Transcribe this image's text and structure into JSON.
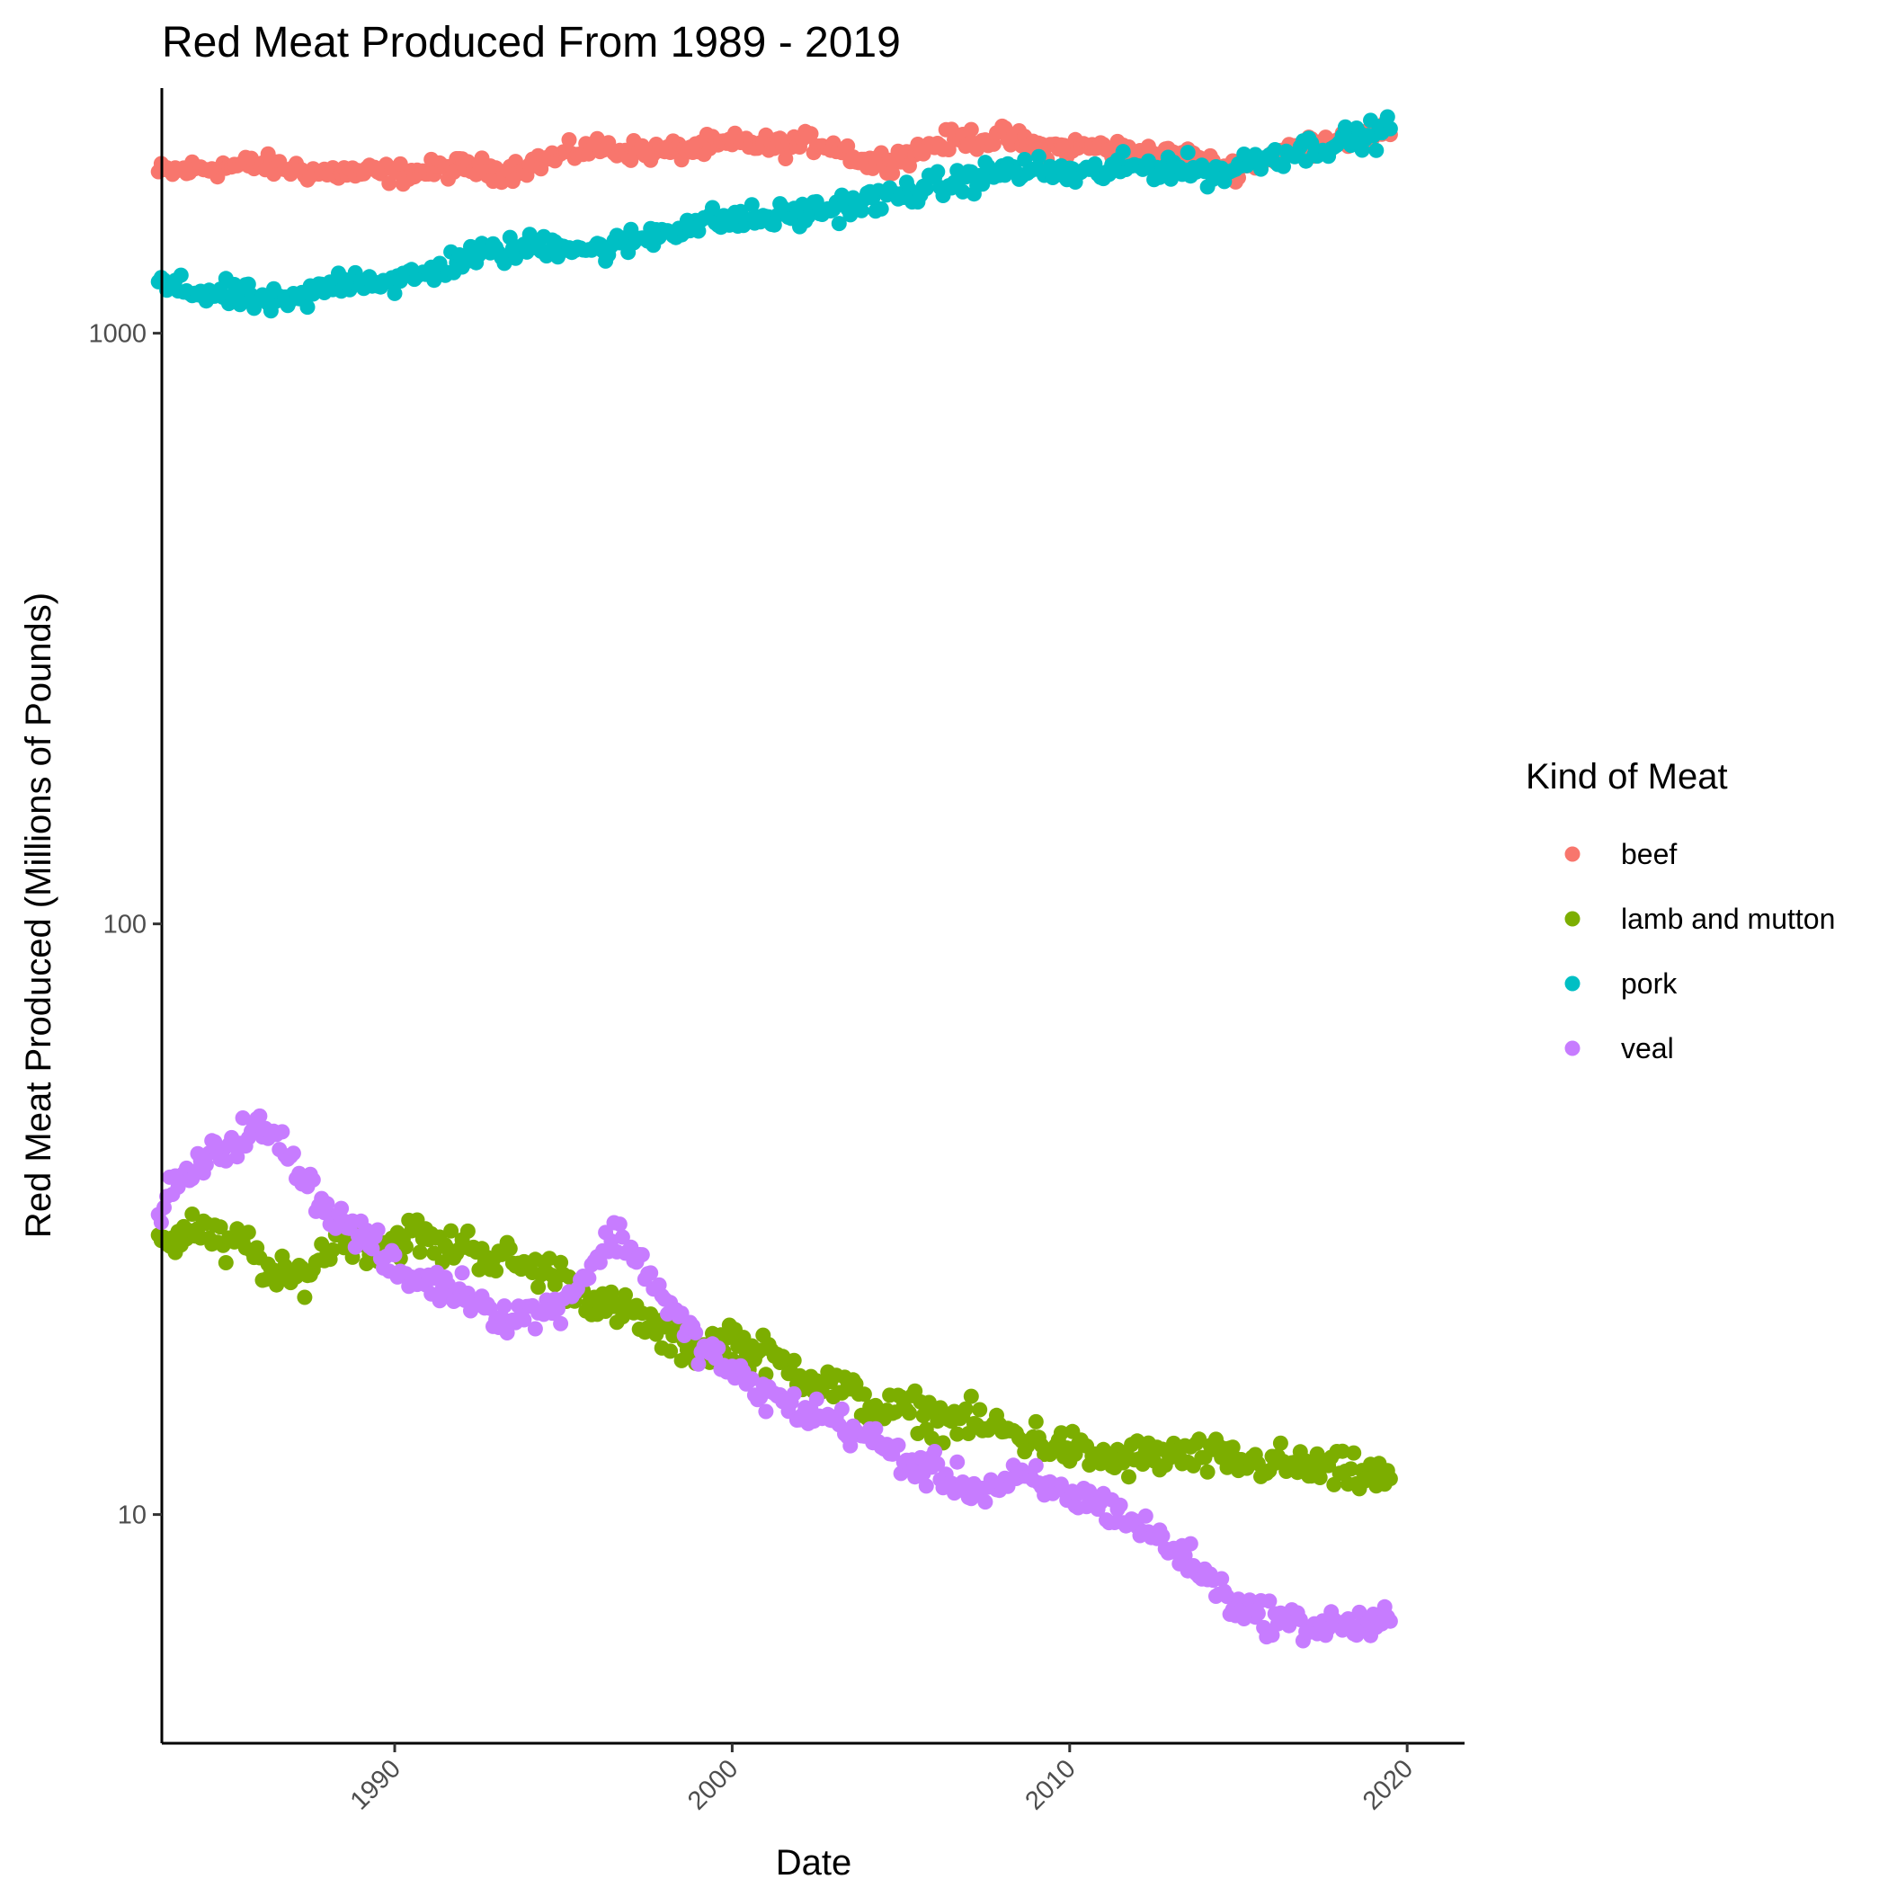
{
  "chart_data": {
    "type": "scatter",
    "title": "Red Meat Produced From 1989 - 2019",
    "xlabel": "Date",
    "ylabel": "Red Meat Produced (Millions of Pounds)",
    "x_scale": "date",
    "y_scale": "log10",
    "xlim": [
      1983.1,
      2021.7
    ],
    "ylim": [
      4.1,
      2600
    ],
    "x_ticks": [
      1990,
      2000,
      2010,
      2020
    ],
    "x_tick_labels": [
      "1990",
      "2000",
      "2010",
      "2020"
    ],
    "y_ticks": [
      10,
      100,
      1000
    ],
    "y_tick_labels": [
      "10",
      "100",
      "1000"
    ],
    "grid": false,
    "legend": {
      "title": "Kind of Meat",
      "position": "right"
    },
    "series": [
      {
        "name": "beef",
        "color": "#F8766D",
        "points": [
          [
            1983.0,
            1870
          ],
          [
            1983.5,
            1880
          ],
          [
            1984.0,
            1895
          ],
          [
            1984.5,
            1905
          ],
          [
            1985.0,
            1915
          ],
          [
            1985.5,
            1920
          ],
          [
            1986.0,
            1935
          ],
          [
            1986.5,
            1910
          ],
          [
            1987.0,
            1900
          ],
          [
            1987.5,
            1880
          ],
          [
            1988.0,
            1870
          ],
          [
            1988.5,
            1875
          ],
          [
            1989.0,
            1865
          ],
          [
            1989.5,
            1870
          ],
          [
            1990.0,
            1860
          ],
          [
            1990.5,
            1870
          ],
          [
            1991.0,
            1880
          ],
          [
            1991.5,
            1900
          ],
          [
            1992.0,
            1910
          ],
          [
            1992.5,
            1900
          ],
          [
            1993.0,
            1880
          ],
          [
            1993.5,
            1895
          ],
          [
            1994.0,
            1930
          ],
          [
            1994.5,
            1970
          ],
          [
            1995.0,
            2000
          ],
          [
            1995.5,
            2040
          ],
          [
            1996.0,
            2060
          ],
          [
            1996.5,
            2050
          ],
          [
            1997.0,
            2040
          ],
          [
            1997.5,
            2030
          ],
          [
            1998.0,
            2030
          ],
          [
            1998.5,
            2045
          ],
          [
            1999.0,
            2060
          ],
          [
            1999.5,
            2075
          ],
          [
            2000.0,
            2090
          ],
          [
            2000.5,
            2100
          ],
          [
            2001.0,
            2080
          ],
          [
            2001.5,
            2070
          ],
          [
            2002.0,
            2090
          ],
          [
            2002.5,
            2110
          ],
          [
            2003.0,
            2080
          ],
          [
            2003.5,
            2020
          ],
          [
            2004.0,
            1940
          ],
          [
            2004.5,
            1960
          ],
          [
            2005.0,
            1990
          ],
          [
            2005.5,
            2030
          ],
          [
            2006.0,
            2090
          ],
          [
            2006.5,
            2120
          ],
          [
            2007.0,
            2140
          ],
          [
            2007.5,
            2130
          ],
          [
            2008.0,
            2150
          ],
          [
            2008.5,
            2110
          ],
          [
            2009.0,
            2070
          ],
          [
            2009.5,
            2060
          ],
          [
            2010.0,
            2060
          ],
          [
            2010.5,
            2070
          ],
          [
            2011.0,
            2060
          ],
          [
            2011.5,
            2040
          ],
          [
            2012.0,
            2020
          ],
          [
            2012.5,
            2000
          ],
          [
            2013.0,
            1990
          ],
          [
            2013.5,
            1990
          ],
          [
            2014.0,
            1940
          ],
          [
            2014.5,
            1900
          ],
          [
            2015.0,
            1900
          ],
          [
            2015.5,
            1950
          ],
          [
            2016.0,
            2000
          ],
          [
            2016.5,
            2050
          ],
          [
            2017.0,
            2080
          ],
          [
            2017.5,
            2110
          ],
          [
            2018.0,
            2130
          ],
          [
            2018.5,
            2140
          ],
          [
            2019.0,
            2150
          ],
          [
            2019.5,
            2170
          ]
        ]
      },
      {
        "name": "lamb and mutton",
        "color": "#7CAE00",
        "points": [
          [
            1983.0,
            30
          ],
          [
            1983.5,
            29
          ],
          [
            1984.0,
            31
          ],
          [
            1984.5,
            30
          ],
          [
            1985.0,
            28
          ],
          [
            1985.5,
            29
          ],
          [
            1986.0,
            27
          ],
          [
            1986.5,
            25
          ],
          [
            1987.0,
            25
          ],
          [
            1987.5,
            26
          ],
          [
            1988.0,
            28
          ],
          [
            1988.5,
            30
          ],
          [
            1989.0,
            29
          ],
          [
            1989.5,
            28
          ],
          [
            1990.0,
            29
          ],
          [
            1990.5,
            30
          ],
          [
            1991.0,
            29
          ],
          [
            1991.5,
            28
          ],
          [
            1992.0,
            29
          ],
          [
            1992.5,
            28
          ],
          [
            1993.0,
            27
          ],
          [
            1993.5,
            27
          ],
          [
            1994.0,
            26
          ],
          [
            1994.5,
            26
          ],
          [
            1995.0,
            25
          ],
          [
            1995.5,
            24
          ],
          [
            1996.0,
            23
          ],
          [
            1996.5,
            22
          ],
          [
            1997.0,
            22
          ],
          [
            1997.5,
            21
          ],
          [
            1998.0,
            20
          ],
          [
            1998.5,
            19.5
          ],
          [
            1999.0,
            19
          ],
          [
            1999.5,
            19.5
          ],
          [
            2000.0,
            20
          ],
          [
            2000.5,
            19
          ],
          [
            2001.0,
            18.5
          ],
          [
            2001.5,
            18
          ],
          [
            2002.0,
            17.5
          ],
          [
            2002.5,
            17
          ],
          [
            2003.0,
            16.5
          ],
          [
            2003.5,
            16
          ],
          [
            2004.0,
            15.5
          ],
          [
            2004.5,
            15
          ],
          [
            2005.0,
            15
          ],
          [
            2005.5,
            15
          ],
          [
            2006.0,
            14.5
          ],
          [
            2006.5,
            14.5
          ],
          [
            2007.0,
            14.5
          ],
          [
            2007.5,
            14
          ],
          [
            2008.0,
            14
          ],
          [
            2008.5,
            13.5
          ],
          [
            2009.0,
            13.5
          ],
          [
            2009.5,
            13
          ],
          [
            2010.0,
            13
          ],
          [
            2010.5,
            12.5
          ],
          [
            2011.0,
            12.5
          ],
          [
            2011.5,
            12.3
          ],
          [
            2012.0,
            12.5
          ],
          [
            2012.5,
            12.5
          ],
          [
            2013.0,
            12.6
          ],
          [
            2013.5,
            12.5
          ],
          [
            2014.0,
            12.5
          ],
          [
            2014.5,
            12.4
          ],
          [
            2015.0,
            12.3
          ],
          [
            2015.5,
            12.2
          ],
          [
            2016.0,
            12.3
          ],
          [
            2016.5,
            12.1
          ],
          [
            2017.0,
            12.0
          ],
          [
            2017.5,
            11.9
          ],
          [
            2018.0,
            11.8
          ],
          [
            2018.5,
            11.7
          ],
          [
            2019.0,
            11.6
          ],
          [
            2019.5,
            11.5
          ]
        ]
      },
      {
        "name": "pork",
        "color": "#00BFC4",
        "points": [
          [
            1983.0,
            1210
          ],
          [
            1983.5,
            1190
          ],
          [
            1984.0,
            1180
          ],
          [
            1984.5,
            1170
          ],
          [
            1985.0,
            1160
          ],
          [
            1985.5,
            1150
          ],
          [
            1986.0,
            1140
          ],
          [
            1986.5,
            1120
          ],
          [
            1987.0,
            1130
          ],
          [
            1987.5,
            1160
          ],
          [
            1988.0,
            1200
          ],
          [
            1988.5,
            1230
          ],
          [
            1989.0,
            1240
          ],
          [
            1989.5,
            1230
          ],
          [
            1990.0,
            1220
          ],
          [
            1990.5,
            1240
          ],
          [
            1991.0,
            1260
          ],
          [
            1991.5,
            1300
          ],
          [
            1992.0,
            1340
          ],
          [
            1992.5,
            1360
          ],
          [
            1993.0,
            1370
          ],
          [
            1993.5,
            1380
          ],
          [
            1994.0,
            1400
          ],
          [
            1994.5,
            1410
          ],
          [
            1995.0,
            1420
          ],
          [
            1995.5,
            1400
          ],
          [
            1996.0,
            1380
          ],
          [
            1996.5,
            1400
          ],
          [
            1997.0,
            1430
          ],
          [
            1997.5,
            1460
          ],
          [
            1998.0,
            1490
          ],
          [
            1998.5,
            1520
          ],
          [
            1999.0,
            1540
          ],
          [
            1999.5,
            1550
          ],
          [
            2000.0,
            1560
          ],
          [
            2000.5,
            1560
          ],
          [
            2001.0,
            1570
          ],
          [
            2001.5,
            1580
          ],
          [
            2002.0,
            1590
          ],
          [
            2002.5,
            1610
          ],
          [
            2003.0,
            1630
          ],
          [
            2003.5,
            1650
          ],
          [
            2004.0,
            1670
          ],
          [
            2004.5,
            1690
          ],
          [
            2005.0,
            1720
          ],
          [
            2005.5,
            1750
          ],
          [
            2006.0,
            1770
          ],
          [
            2006.5,
            1790
          ],
          [
            2007.0,
            1820
          ],
          [
            2007.5,
            1850
          ],
          [
            2008.0,
            1880
          ],
          [
            2008.5,
            1890
          ],
          [
            2009.0,
            1890
          ],
          [
            2009.5,
            1880
          ],
          [
            2010.0,
            1860
          ],
          [
            2010.5,
            1860
          ],
          [
            2011.0,
            1880
          ],
          [
            2011.5,
            1900
          ],
          [
            2012.0,
            1910
          ],
          [
            2012.5,
            1920
          ],
          [
            2013.0,
            1910
          ],
          [
            2013.5,
            1900
          ],
          [
            2014.0,
            1880
          ],
          [
            2014.5,
            1870
          ],
          [
            2015.0,
            1920
          ],
          [
            2015.5,
            1970
          ],
          [
            2016.0,
            2000
          ],
          [
            2016.5,
            2020
          ],
          [
            2017.0,
            2050
          ],
          [
            2017.5,
            2080
          ],
          [
            2018.0,
            2110
          ],
          [
            2018.5,
            2140
          ],
          [
            2019.0,
            2170
          ],
          [
            2019.5,
            2220
          ]
        ]
      },
      {
        "name": "veal",
        "color": "#C77CFF",
        "points": [
          [
            1983.0,
            33
          ],
          [
            1983.5,
            36
          ],
          [
            1984.0,
            38
          ],
          [
            1984.5,
            40
          ],
          [
            1985.0,
            42
          ],
          [
            1985.5,
            44
          ],
          [
            1986.0,
            45
          ],
          [
            1986.5,
            43
          ],
          [
            1987.0,
            40
          ],
          [
            1987.5,
            36
          ],
          [
            1988.0,
            33
          ],
          [
            1988.5,
            31
          ],
          [
            1989.0,
            30
          ],
          [
            1989.5,
            28
          ],
          [
            1990.0,
            26
          ],
          [
            1990.5,
            25
          ],
          [
            1991.0,
            25
          ],
          [
            1991.5,
            24
          ],
          [
            1992.0,
            24
          ],
          [
            1992.5,
            23
          ],
          [
            1993.0,
            22
          ],
          [
            1993.5,
            21.5
          ],
          [
            1994.0,
            22
          ],
          [
            1994.5,
            22
          ],
          [
            1995.0,
            23
          ],
          [
            1995.5,
            25
          ],
          [
            1996.0,
            27
          ],
          [
            1996.5,
            30
          ],
          [
            1997.0,
            28
          ],
          [
            1997.5,
            26
          ],
          [
            1998.0,
            23
          ],
          [
            1998.5,
            21
          ],
          [
            1999.0,
            19.5
          ],
          [
            1999.5,
            18.5
          ],
          [
            2000.0,
            17.5
          ],
          [
            2000.5,
            16.5
          ],
          [
            2001.0,
            16
          ],
          [
            2001.5,
            15.5
          ],
          [
            2002.0,
            15
          ],
          [
            2002.5,
            14.8
          ],
          [
            2003.0,
            14.5
          ],
          [
            2003.5,
            14
          ],
          [
            2004.0,
            13.5
          ],
          [
            2004.5,
            13
          ],
          [
            2005.0,
            12.5
          ],
          [
            2005.5,
            12
          ],
          [
            2006.0,
            11.8
          ],
          [
            2006.5,
            11.5
          ],
          [
            2007.0,
            11.2
          ],
          [
            2007.5,
            11.0
          ],
          [
            2008.0,
            11.2
          ],
          [
            2008.5,
            11.5
          ],
          [
            2009.0,
            11.3
          ],
          [
            2009.5,
            11.0
          ],
          [
            2010.0,
            10.8
          ],
          [
            2010.5,
            10.6
          ],
          [
            2011.0,
            10.4
          ],
          [
            2011.5,
            10.0
          ],
          [
            2012.0,
            9.6
          ],
          [
            2012.5,
            9.2
          ],
          [
            2013.0,
            8.8
          ],
          [
            2013.5,
            8.4
          ],
          [
            2014.0,
            7.9
          ],
          [
            2014.5,
            7.4
          ],
          [
            2015.0,
            7.0
          ],
          [
            2015.5,
            6.8
          ],
          [
            2016.0,
            6.7
          ],
          [
            2016.5,
            6.6
          ],
          [
            2017.0,
            6.5
          ],
          [
            2017.5,
            6.5
          ],
          [
            2018.0,
            6.5
          ],
          [
            2018.5,
            6.5
          ],
          [
            2019.0,
            6.5
          ],
          [
            2019.5,
            6.6
          ]
        ]
      }
    ]
  }
}
